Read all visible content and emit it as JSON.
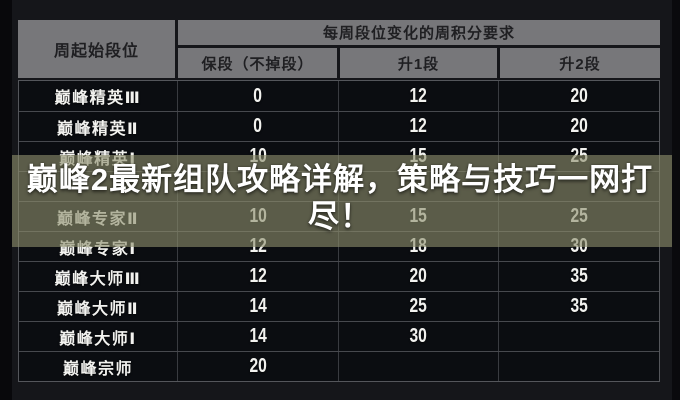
{
  "banner": {
    "lines": [
      "巅峰2最新组队攻略详解，策略与技巧一网打",
      "尽！"
    ]
  },
  "table": {
    "header": {
      "rank_col": "周起始段位",
      "points_group": "每周段位变化的周积分要求",
      "sub_cols": [
        "保段（不掉段）",
        "升1段",
        "升2段"
      ]
    },
    "rows": [
      {
        "rank": "巅峰精英Ⅲ",
        "keep": "0",
        "up1": "12",
        "up2": "20"
      },
      {
        "rank": "巅峰精英Ⅱ",
        "keep": "0",
        "up1": "12",
        "up2": "20"
      },
      {
        "rank": "巅峰精英Ⅰ",
        "keep": "10",
        "up1": "15",
        "up2": "25"
      },
      {
        "rank": "",
        "keep": "",
        "up1": "",
        "up2": ""
      },
      {
        "rank": "巅峰专家Ⅱ",
        "keep": "10",
        "up1": "15",
        "up2": "25"
      },
      {
        "rank": "巅峰专家Ⅰ",
        "keep": "12",
        "up1": "18",
        "up2": "30"
      },
      {
        "rank": "巅峰大师Ⅲ",
        "keep": "12",
        "up1": "20",
        "up2": "35"
      },
      {
        "rank": "巅峰大师Ⅱ",
        "keep": "14",
        "up1": "25",
        "up2": "35"
      },
      {
        "rank": "巅峰大师Ⅰ",
        "keep": "14",
        "up1": "30",
        "up2": ""
      },
      {
        "rank": "巅峰宗师",
        "keep": "20",
        "up1": "",
        "up2": ""
      }
    ]
  },
  "colors": {
    "page_bg": "#15161a",
    "header_bg": "#77777a",
    "header_text": "#1f1f22",
    "table_bg": "#0b0d11",
    "cell_text": "#f2f2ef",
    "banner_tint": "#8c8e6c",
    "banner_text": "#ffffff"
  }
}
